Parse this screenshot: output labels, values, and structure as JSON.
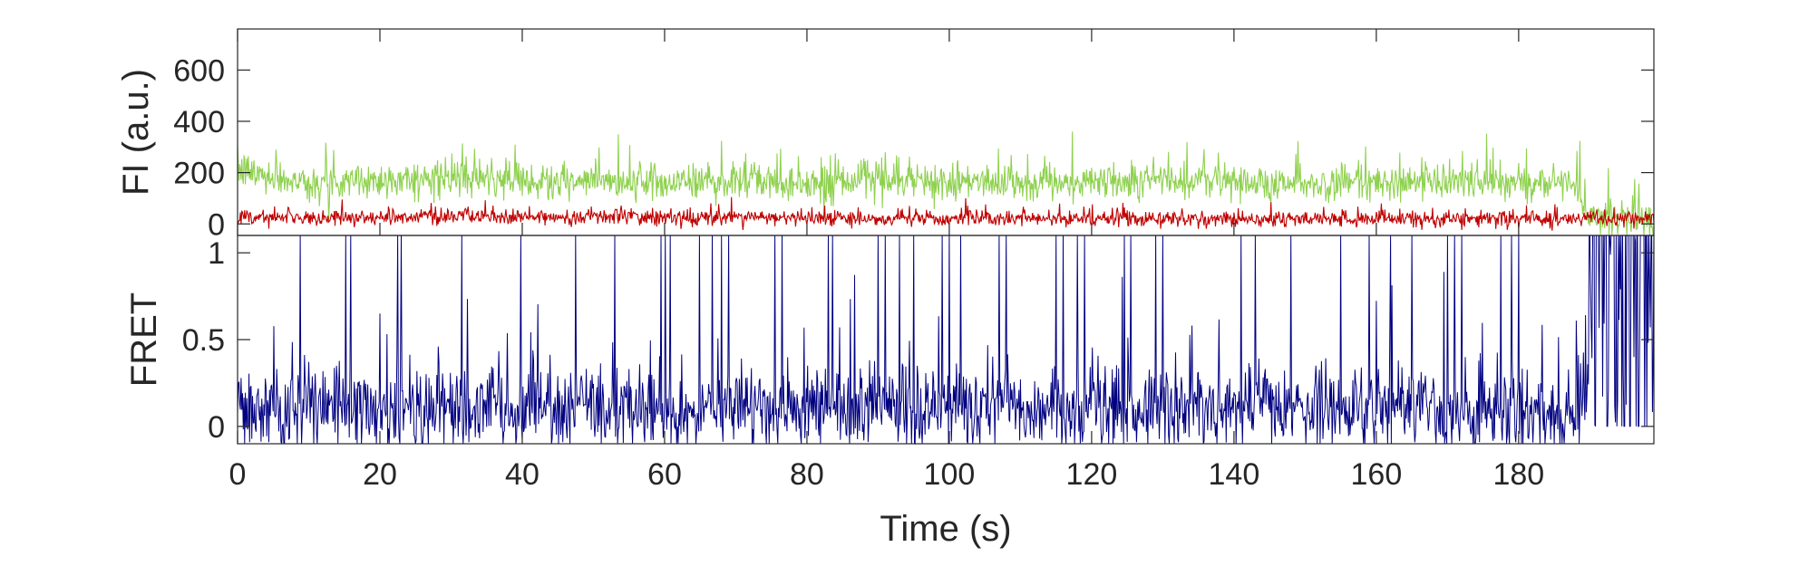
{
  "chart_data": [
    {
      "type": "line",
      "panel": "top",
      "ylabel": "FI (a.u.)",
      "xlabel": "",
      "xlim": [
        0,
        199
      ],
      "ylim": [
        -45,
        760
      ],
      "yticks": [
        0,
        200,
        400,
        600
      ],
      "ytick_labels": [
        "0",
        "200",
        "400",
        "600"
      ],
      "xtick_labels_shown": false,
      "series": [
        {
          "color": "#8fd14f",
          "t_step": 0.1,
          "x_start": 0,
          "x_end": 199,
          "anchors_x": [
            0,
            5,
            10,
            20,
            30,
            40,
            50,
            60,
            70,
            80,
            90,
            100,
            110,
            120,
            130,
            140,
            150,
            160,
            170,
            180,
            188,
            190,
            192,
            199
          ],
          "anchors_y": [
            210,
            185,
            160,
            170,
            175,
            165,
            160,
            165,
            170,
            155,
            170,
            160,
            160,
            165,
            175,
            165,
            160,
            165,
            160,
            155,
            160,
            40,
            20,
            15
          ],
          "noise": 65,
          "max_peak": 440
        },
        {
          "color": "#c00000",
          "t_step": 0.1,
          "x_start": 0,
          "x_end": 199,
          "anchors_x": [
            0,
            10,
            20,
            30,
            40,
            50,
            60,
            70,
            80,
            90,
            100,
            110,
            120,
            130,
            140,
            150,
            160,
            170,
            180,
            190,
            199
          ],
          "anchors_y": [
            30,
            25,
            25,
            30,
            25,
            30,
            25,
            25,
            25,
            20,
            20,
            20,
            20,
            20,
            20,
            20,
            20,
            20,
            20,
            20,
            15
          ],
          "noise": 28,
          "max_peak": 160
        }
      ]
    },
    {
      "type": "line",
      "panel": "bottom",
      "xlabel": "Time (s)",
      "ylabel": "FRET",
      "xlim": [
        0,
        199
      ],
      "ylim": [
        -0.1,
        1.1
      ],
      "yticks": [
        0,
        0.5,
        1
      ],
      "ytick_labels": [
        "0",
        "0.5",
        "1"
      ],
      "xticks": [
        0,
        20,
        40,
        60,
        80,
        100,
        120,
        140,
        160,
        180
      ],
      "xtick_labels": [
        "0",
        "20",
        "40",
        "60",
        "80",
        "100",
        "120",
        "140",
        "160",
        "180"
      ],
      "series": [
        {
          "color": "#000080",
          "t_step": 0.1,
          "x_start": 0,
          "x_end": 199,
          "baseline": 0.1,
          "noise": 0.12,
          "spike_times": [
            8.8,
            15.2,
            15.9,
            22.5,
            23.0,
            31.5,
            39.8,
            47.5,
            53.0,
            59.5,
            60.1,
            60.8,
            64.9,
            66.7,
            68.0,
            69.0,
            75.5,
            76.5,
            83.0,
            83.6,
            90.0,
            91.0,
            93.0,
            95.0,
            99.0,
            100.0,
            101.6,
            107.0,
            108.0,
            115.0,
            116.0,
            118.0,
            119.0,
            124.6,
            125.5,
            129.0,
            130.0,
            141.0,
            143.0,
            148.0,
            155.0,
            159.0,
            162.0,
            165.0,
            170.0,
            171.0,
            172.0,
            177.5,
            179.0,
            180.0,
            190.0,
            191.0,
            191.6,
            192.1,
            192.7,
            193.3,
            194.0,
            194.6,
            195.3,
            196.0,
            196.7,
            197.4,
            198.1,
            198.7
          ],
          "dense_region": [
            189.5,
            199
          ],
          "max_value": 1.1
        }
      ]
    }
  ]
}
